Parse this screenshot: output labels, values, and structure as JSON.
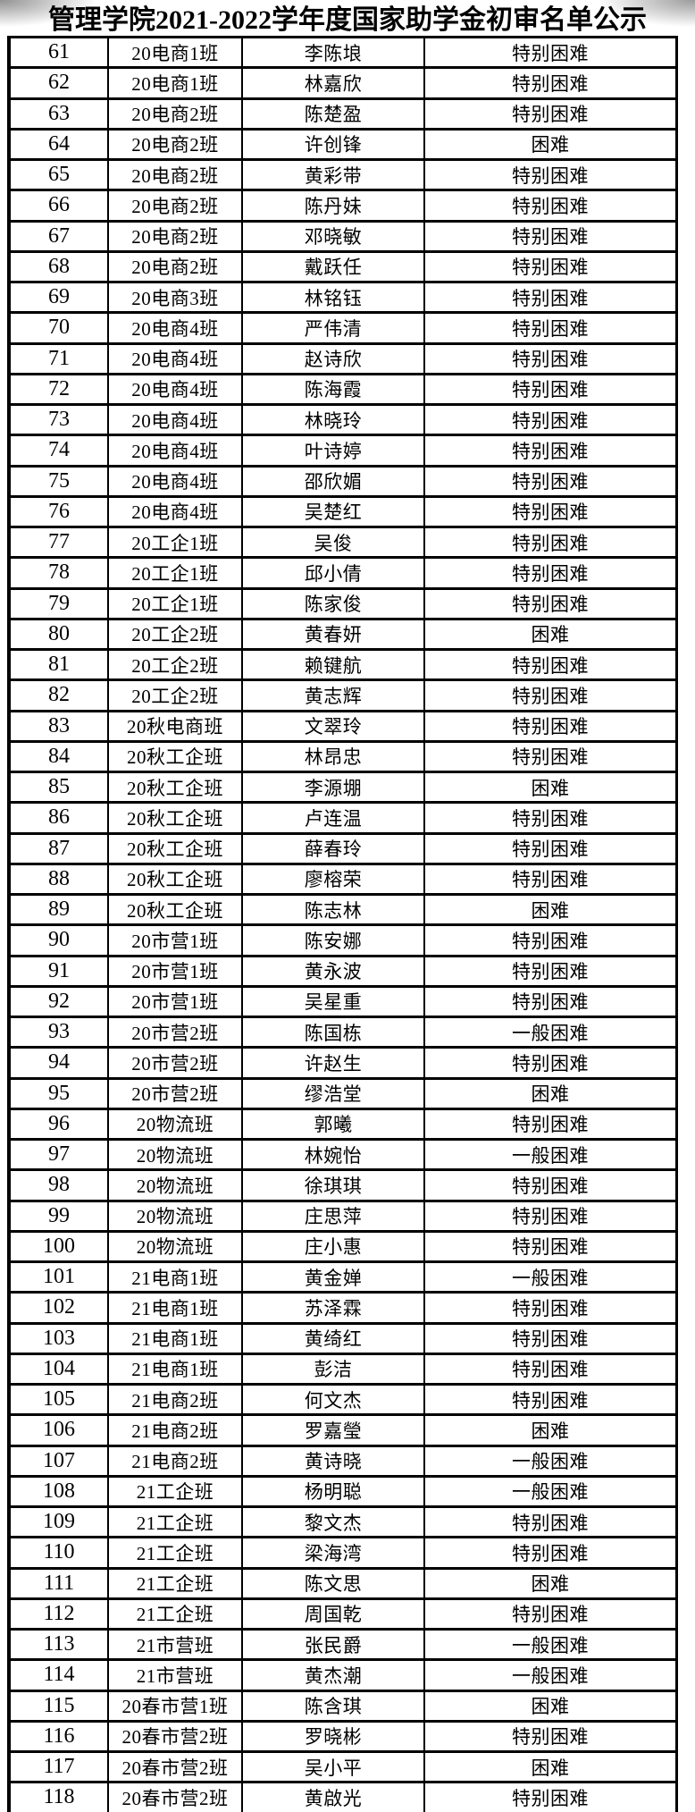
{
  "page_title": "管理学院2021-2022学年度国家助学金初审名单公示",
  "colors": {
    "text": "#000000",
    "border": "#000000",
    "background": "#ffffff",
    "scan_shadow": "#8f8f8f"
  },
  "table": {
    "rows": [
      {
        "no": "61",
        "class_name": "20电商1班",
        "student": "李陈埌",
        "level": "特别困难"
      },
      {
        "no": "62",
        "class_name": "20电商1班",
        "student": "林嘉欣",
        "level": "特别困难"
      },
      {
        "no": "63",
        "class_name": "20电商2班",
        "student": "陈楚盈",
        "level": "特别困难"
      },
      {
        "no": "64",
        "class_name": "20电商2班",
        "student": "许创锋",
        "level": "困难"
      },
      {
        "no": "65",
        "class_name": "20电商2班",
        "student": "黄彩带",
        "level": "特别困难"
      },
      {
        "no": "66",
        "class_name": "20电商2班",
        "student": "陈丹妹",
        "level": "特别困难"
      },
      {
        "no": "67",
        "class_name": "20电商2班",
        "student": "邓晓敏",
        "level": "特别困难"
      },
      {
        "no": "68",
        "class_name": "20电商2班",
        "student": "戴跃任",
        "level": "特别困难"
      },
      {
        "no": "69",
        "class_name": "20电商3班",
        "student": "林铭钰",
        "level": "特别困难"
      },
      {
        "no": "70",
        "class_name": "20电商4班",
        "student": "严伟清",
        "level": "特别困难"
      },
      {
        "no": "71",
        "class_name": "20电商4班",
        "student": "赵诗欣",
        "level": "特别困难"
      },
      {
        "no": "72",
        "class_name": "20电商4班",
        "student": "陈海霞",
        "level": "特别困难"
      },
      {
        "no": "73",
        "class_name": "20电商4班",
        "student": "林晓玲",
        "level": "特别困难"
      },
      {
        "no": "74",
        "class_name": "20电商4班",
        "student": "叶诗婷",
        "level": "特别困难"
      },
      {
        "no": "75",
        "class_name": "20电商4班",
        "student": "邵欣媚",
        "level": "特别困难"
      },
      {
        "no": "76",
        "class_name": "20电商4班",
        "student": "吴楚红",
        "level": "特别困难"
      },
      {
        "no": "77",
        "class_name": "20工企1班",
        "student": "吴俊",
        "level": "特别困难"
      },
      {
        "no": "78",
        "class_name": "20工企1班",
        "student": "邱小倩",
        "level": "特别困难"
      },
      {
        "no": "79",
        "class_name": "20工企1班",
        "student": "陈家俊",
        "level": "特别困难"
      },
      {
        "no": "80",
        "class_name": "20工企2班",
        "student": "黄春妍",
        "level": "困难"
      },
      {
        "no": "81",
        "class_name": "20工企2班",
        "student": "赖键航",
        "level": "特别困难"
      },
      {
        "no": "82",
        "class_name": "20工企2班",
        "student": "黄志辉",
        "level": "特别困难"
      },
      {
        "no": "83",
        "class_name": "20秋电商班",
        "student": "文翠玲",
        "level": "特别困难"
      },
      {
        "no": "84",
        "class_name": "20秋工企班",
        "student": "林昂忠",
        "level": "特别困难"
      },
      {
        "no": "85",
        "class_name": "20秋工企班",
        "student": "李源堋",
        "level": "困难"
      },
      {
        "no": "86",
        "class_name": "20秋工企班",
        "student": "卢连温",
        "level": "特别困难"
      },
      {
        "no": "87",
        "class_name": "20秋工企班",
        "student": "薛春玲",
        "level": "特别困难"
      },
      {
        "no": "88",
        "class_name": "20秋工企班",
        "student": "廖榕荣",
        "level": "特别困难"
      },
      {
        "no": "89",
        "class_name": "20秋工企班",
        "student": "陈志林",
        "level": "困难"
      },
      {
        "no": "90",
        "class_name": "20市营1班",
        "student": "陈安娜",
        "level": "特别困难"
      },
      {
        "no": "91",
        "class_name": "20市营1班",
        "student": "黄永波",
        "level": "特别困难"
      },
      {
        "no": "92",
        "class_name": "20市营1班",
        "student": "吴星重",
        "level": "特别困难"
      },
      {
        "no": "93",
        "class_name": "20市营2班",
        "student": "陈国栋",
        "level": "一般困难"
      },
      {
        "no": "94",
        "class_name": "20市营2班",
        "student": "许赵生",
        "level": "特别困难"
      },
      {
        "no": "95",
        "class_name": "20市营2班",
        "student": "缪浩堂",
        "level": "困难"
      },
      {
        "no": "96",
        "class_name": "20物流班",
        "student": "郭曦",
        "level": "特别困难"
      },
      {
        "no": "97",
        "class_name": "20物流班",
        "student": "林婉怡",
        "level": "一般困难"
      },
      {
        "no": "98",
        "class_name": "20物流班",
        "student": "徐琪琪",
        "level": "特别困难"
      },
      {
        "no": "99",
        "class_name": "20物流班",
        "student": "庄思萍",
        "level": "特别困难"
      },
      {
        "no": "100",
        "class_name": "20物流班",
        "student": "庄小惠",
        "level": "特别困难"
      },
      {
        "no": "101",
        "class_name": "21电商1班",
        "student": "黄金婵",
        "level": "一般困难"
      },
      {
        "no": "102",
        "class_name": "21电商1班",
        "student": "苏泽霖",
        "level": "特别困难"
      },
      {
        "no": "103",
        "class_name": "21电商1班",
        "student": "黄绮红",
        "level": "特别困难"
      },
      {
        "no": "104",
        "class_name": "21电商1班",
        "student": "彭洁",
        "level": "特别困难"
      },
      {
        "no": "105",
        "class_name": "21电商2班",
        "student": "何文杰",
        "level": "特别困难"
      },
      {
        "no": "106",
        "class_name": "21电商2班",
        "student": "罗嘉瑩",
        "level": "困难"
      },
      {
        "no": "107",
        "class_name": "21电商2班",
        "student": "黄诗晓",
        "level": "一般困难"
      },
      {
        "no": "108",
        "class_name": "21工企班",
        "student": "杨明聪",
        "level": "一般困难"
      },
      {
        "no": "109",
        "class_name": "21工企班",
        "student": "黎文杰",
        "level": "特别困难"
      },
      {
        "no": "110",
        "class_name": "21工企班",
        "student": "梁海湾",
        "level": "特别困难"
      },
      {
        "no": "111",
        "class_name": "21工企班",
        "student": "陈文思",
        "level": "困难"
      },
      {
        "no": "112",
        "class_name": "21工企班",
        "student": "周国乾",
        "level": "特别困难"
      },
      {
        "no": "113",
        "class_name": "21市营班",
        "student": "张民爵",
        "level": "一般困难"
      },
      {
        "no": "114",
        "class_name": "21市营班",
        "student": "黄杰潮",
        "level": "一般困难"
      },
      {
        "no": "115",
        "class_name": "20春市营1班",
        "student": "陈含琪",
        "level": "困难"
      },
      {
        "no": "116",
        "class_name": "20春市营2班",
        "student": "罗晓彬",
        "level": "特别困难"
      },
      {
        "no": "117",
        "class_name": "20春市营2班",
        "student": "吴小平",
        "level": "困难"
      },
      {
        "no": "118",
        "class_name": "20春市营2班",
        "student": "黄啟光",
        "level": "特别困难"
      }
    ]
  }
}
